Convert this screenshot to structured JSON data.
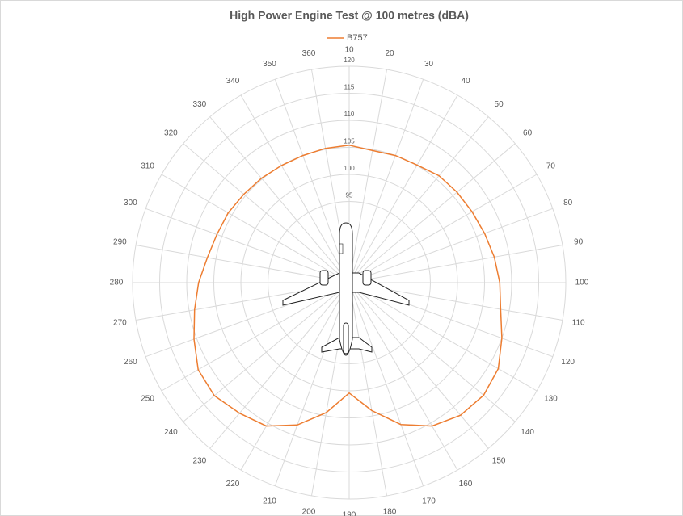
{
  "chart_data": {
    "type": "radar",
    "title": "High Power Engine Test @ 100 metres (dBA)",
    "categories": [
      "10",
      "20",
      "30",
      "40",
      "50",
      "60",
      "70",
      "80",
      "90",
      "100",
      "110",
      "120",
      "130",
      "140",
      "150",
      "160",
      "170",
      "180",
      "190",
      "200",
      "210",
      "220",
      "230",
      "240",
      "250",
      "260",
      "270",
      "280",
      "290",
      "300",
      "310",
      "320",
      "330",
      "340",
      "350",
      "360"
    ],
    "series": [
      {
        "name": "B757",
        "color": "#ed7d31",
        "values": [
          105.4,
          104.8,
          105,
          105.1,
          105.8,
          106,
          106.2,
          106.6,
          107.2,
          107.8,
          108.4,
          110,
          111.8,
          112.4,
          112,
          110.6,
          107.9,
          104,
          100.4,
          104.4,
          108,
          110.6,
          111.5,
          112.5,
          112.2,
          110.5,
          109,
          107.8,
          106.6,
          106,
          105.8,
          105.4,
          105.2,
          105,
          105,
          105.2
        ]
      }
    ],
    "ylim": [
      80,
      120
    ],
    "yticks": [
      95,
      100,
      105,
      110,
      115,
      120
    ],
    "grid": true,
    "legend": "top"
  }
}
